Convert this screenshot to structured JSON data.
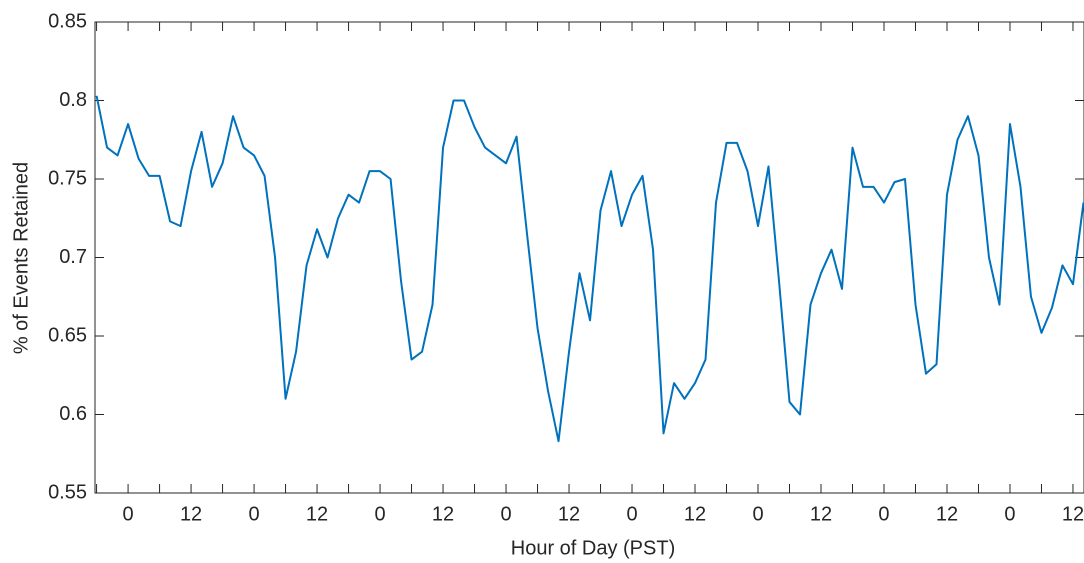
{
  "chart_data": {
    "type": "line",
    "xlabel": "Hour of Day (PST)",
    "ylabel": "% of Events Retained",
    "x": [
      -6,
      -4,
      -2,
      0,
      2,
      4,
      6,
      8,
      10,
      12,
      14,
      16,
      18,
      20,
      22,
      24,
      26,
      28,
      30,
      32,
      34,
      36,
      38,
      40,
      42,
      44,
      46,
      48,
      50,
      52,
      54,
      56,
      58,
      60,
      62,
      64,
      66,
      68,
      70,
      72,
      74,
      76,
      78,
      80,
      82,
      84,
      86,
      88,
      90,
      92,
      94,
      96,
      98,
      100,
      102,
      104,
      106,
      108,
      110,
      112,
      114,
      116,
      118,
      120,
      122,
      124,
      126,
      128,
      130,
      132,
      134,
      136,
      138,
      140,
      142,
      144,
      146,
      148,
      150,
      152,
      154,
      156,
      158,
      160,
      162,
      164,
      166,
      168,
      170,
      172,
      174,
      176,
      178,
      180,
      182
    ],
    "series": [
      {
        "color": "#0072bd",
        "values": [
          0.803,
          0.77,
          0.765,
          0.785,
          0.763,
          0.752,
          0.752,
          0.723,
          0.72,
          0.755,
          0.78,
          0.745,
          0.76,
          0.79,
          0.77,
          0.765,
          0.752,
          0.7,
          0.61,
          0.64,
          0.695,
          0.718,
          0.7,
          0.725,
          0.74,
          0.735,
          0.755,
          0.755,
          0.75,
          0.685,
          0.635,
          0.64,
          0.67,
          0.77,
          0.8,
          0.8,
          0.783,
          0.77,
          0.765,
          0.76,
          0.777,
          0.715,
          0.655,
          0.615,
          0.583,
          0.64,
          0.69,
          0.66,
          0.73,
          0.755,
          0.72,
          0.74,
          0.752,
          0.705,
          0.588,
          0.62,
          0.61,
          0.62,
          0.635,
          0.735,
          0.773,
          0.773,
          0.755,
          0.72,
          0.758,
          0.685,
          0.608,
          0.6,
          0.67,
          0.69,
          0.705,
          0.68,
          0.77,
          0.745,
          0.745,
          0.735,
          0.748,
          0.75,
          0.67,
          0.626,
          0.632,
          0.74,
          0.775,
          0.79,
          0.765,
          0.7,
          0.67,
          0.785,
          0.745,
          0.675,
          0.652,
          0.668,
          0.695,
          0.683,
          0.735
        ]
      }
    ],
    "xlim": [
      -6.3,
      182.1
    ],
    "ylim": [
      0.55,
      0.85
    ],
    "xticks": [
      0,
      12,
      {
        "value": 24,
        "label": "0"
      },
      {
        "value": 36,
        "label": "12"
      },
      {
        "value": 48,
        "label": "0"
      },
      {
        "value": 60,
        "label": "12"
      },
      {
        "value": 72,
        "label": "0"
      },
      {
        "value": 84,
        "label": "12"
      },
      {
        "value": 96,
        "label": "0"
      },
      {
        "value": 108,
        "label": "12"
      },
      {
        "value": 120,
        "label": "0"
      },
      {
        "value": 132,
        "label": "12"
      },
      {
        "value": 144,
        "label": "0"
      },
      {
        "value": 156,
        "label": "12"
      },
      {
        "value": 168,
        "label": "0"
      },
      {
        "value": 180,
        "label": "12"
      }
    ],
    "xminorticks": [
      -6,
      6,
      18,
      30,
      42,
      54,
      66,
      78,
      90,
      102,
      114,
      126,
      138,
      150,
      162,
      174
    ],
    "yticks": [
      0.55,
      0.6,
      0.65,
      0.7,
      0.75,
      0.8,
      0.85
    ]
  }
}
